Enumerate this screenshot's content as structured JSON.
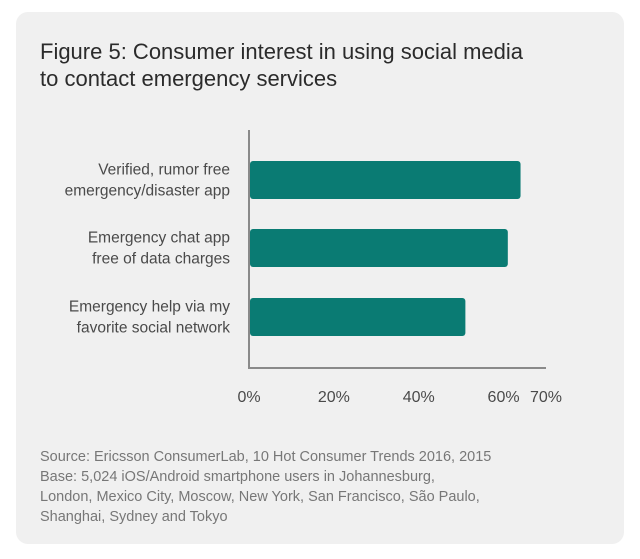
{
  "title_lines": [
    "Figure 5: Consumer interest in using social media",
    "to contact emergency services"
  ],
  "chart_data": {
    "type": "bar",
    "orientation": "horizontal",
    "categories": [
      [
        "Verified, rumor free",
        "emergency/disaster app"
      ],
      [
        "Emergency chat app",
        "free of data charges"
      ],
      [
        "Emergency help via my",
        "favorite social network"
      ]
    ],
    "values": [
      64,
      61,
      51
    ],
    "xlim": [
      0,
      70
    ],
    "x_ticks": [
      "0%",
      "20%",
      "40%",
      "60%",
      "70%"
    ],
    "x_tick_values": [
      0,
      20,
      40,
      60,
      70
    ],
    "grid": false,
    "bar_color": "#0a7b73"
  },
  "source_lines": [
    "Source: Ericsson ConsumerLab, 10 Hot Consumer Trends 2016, 2015",
    "Base: 5,024 iOS/Android smartphone users in Johannesburg,",
    "London, Mexico City, Moscow, New York, San Francisco, São Paulo,",
    "Shanghai, Sydney and Tokyo"
  ]
}
